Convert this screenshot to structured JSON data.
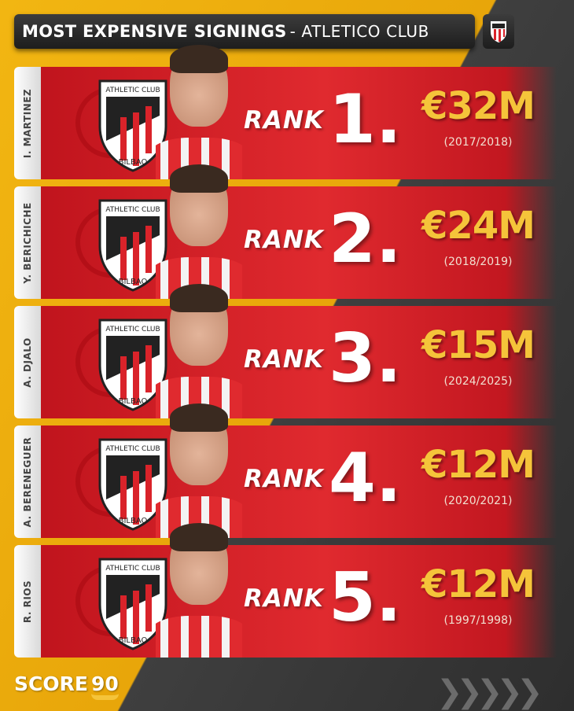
{
  "header": {
    "title_bold": "MOST EXPENSIVE SIGNINGS",
    "title_rest": "- ATLETICO CLUB"
  },
  "rank_label": "RANK",
  "crest_text": {
    "top": "ATHLETIC CLUB",
    "bottom": "BILBAO"
  },
  "rows": [
    {
      "name": "I. MARTINEZ",
      "rank": "1.",
      "price": "€32M",
      "season": "(2017/2018)"
    },
    {
      "name": "Y. BERICHICHE",
      "rank": "2.",
      "price": "€24M",
      "season": "(2018/2019)"
    },
    {
      "name": "A. DJALO",
      "rank": "3.",
      "price": "€15M",
      "season": "(2024/2025)"
    },
    {
      "name": "A. BERENEGUER",
      "rank": "4.",
      "price": "€12M",
      "season": "(2020/2021)"
    },
    {
      "name": "R. RIOS",
      "rank": "5.",
      "price": "€12M",
      "season": "(1997/1998)"
    }
  ],
  "brand": {
    "word": "SCORE",
    "number": "90"
  },
  "colors": {
    "red": "#d9232a",
    "gold": "#f5c43a",
    "yellow_bg": "#f2b612",
    "dark_bg": "#2e2e2e"
  }
}
